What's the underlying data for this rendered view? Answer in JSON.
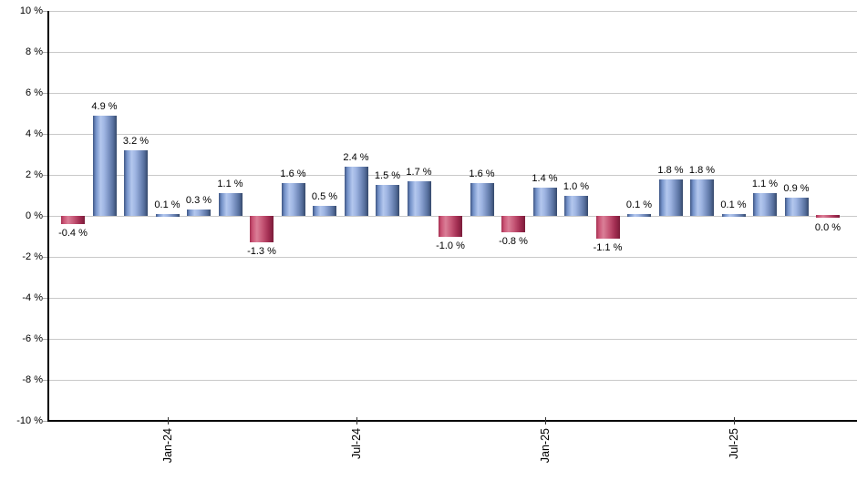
{
  "chart_data": {
    "type": "bar",
    "title": "",
    "unit": "%",
    "grid": true,
    "legend": null,
    "y_axis": {
      "ylim": [
        -10,
        10
      ],
      "tick_values": [
        10,
        8,
        6,
        4,
        2,
        0,
        -2,
        -4,
        -6,
        -8,
        -10
      ],
      "tick_labels": [
        "10 %",
        "8 %",
        "6 %",
        "4 %",
        "2 %",
        "0 %",
        "-2 %",
        "-4 %",
        "-6 %",
        "-8 %",
        "-10 %"
      ]
    },
    "x_axis": {
      "ticks": [
        {
          "label": "Jan-24",
          "bar_index": 3
        },
        {
          "label": "Jul-24",
          "bar_index": 9
        },
        {
          "label": "Jan-25",
          "bar_index": 15
        },
        {
          "label": "Jul-25",
          "bar_index": 21
        }
      ]
    },
    "bars": [
      {
        "value": -0.4,
        "label": "-0.4 %",
        "color": "negative"
      },
      {
        "value": 4.9,
        "label": "4.9 %",
        "color": "positive"
      },
      {
        "value": 3.2,
        "label": "3.2 %",
        "color": "positive"
      },
      {
        "value": 0.1,
        "label": "0.1 %",
        "color": "positive"
      },
      {
        "value": 0.3,
        "label": "0.3 %",
        "color": "positive"
      },
      {
        "value": 1.1,
        "label": "1.1 %",
        "color": "positive"
      },
      {
        "value": -1.3,
        "label": "-1.3 %",
        "color": "negative"
      },
      {
        "value": 1.6,
        "label": "1.6 %",
        "color": "positive"
      },
      {
        "value": 0.5,
        "label": "0.5 %",
        "color": "positive"
      },
      {
        "value": 2.4,
        "label": "2.4 %",
        "color": "positive"
      },
      {
        "value": 1.5,
        "label": "1.5 %",
        "color": "positive"
      },
      {
        "value": 1.7,
        "label": "1.7 %",
        "color": "positive"
      },
      {
        "value": -1.0,
        "label": "-1.0 %",
        "color": "negative"
      },
      {
        "value": 1.6,
        "label": "1.6 %",
        "color": "positive"
      },
      {
        "value": -0.8,
        "label": "-0.8 %",
        "color": "negative"
      },
      {
        "value": 1.4,
        "label": "1.4 %",
        "color": "positive"
      },
      {
        "value": 1.0,
        "label": "1.0 %",
        "color": "positive"
      },
      {
        "value": -1.1,
        "label": "-1.1 %",
        "color": "negative"
      },
      {
        "value": 0.1,
        "label": "0.1 %",
        "color": "positive"
      },
      {
        "value": 1.8,
        "label": "1.8 %",
        "color": "positive"
      },
      {
        "value": 1.8,
        "label": "1.8 %",
        "color": "positive"
      },
      {
        "value": 0.1,
        "label": "0.1 %",
        "color": "positive"
      },
      {
        "value": 1.1,
        "label": "1.1 %",
        "color": "positive"
      },
      {
        "value": 0.9,
        "label": "0.9 %",
        "color": "positive"
      },
      {
        "value": 0.0,
        "label": "0.0 %",
        "color": "negative"
      }
    ]
  },
  "colors": {
    "positive_bar_mid": "#b3c7ee",
    "positive_bar_edge": "#36496b",
    "negative_bar_mid": "#da7f97",
    "negative_bar_edge": "#7a1c3a",
    "gridline": "#c9c9c9",
    "axis": "#000000",
    "text": "#000000",
    "background": "#ffffff"
  }
}
